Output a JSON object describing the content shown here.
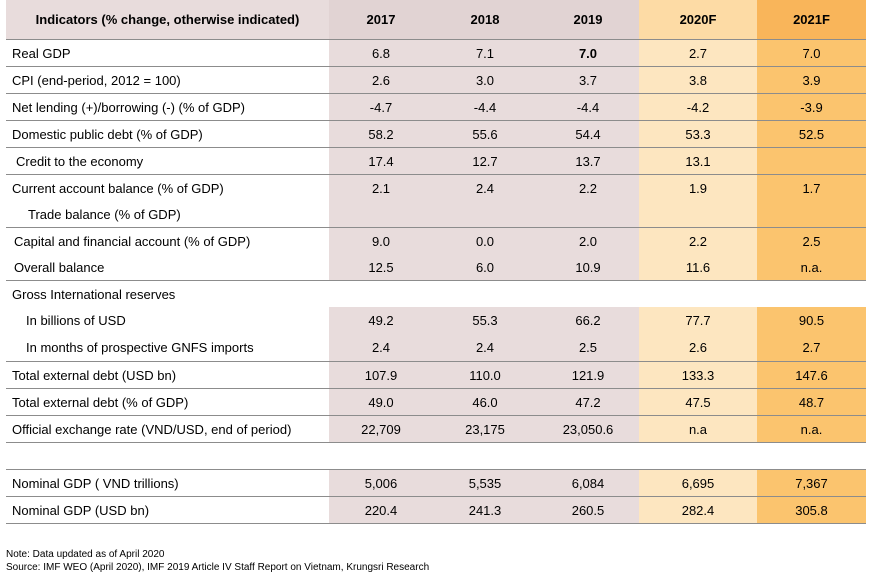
{
  "table": {
    "header": [
      "Indicators (% change, otherwise indicated)",
      "2017",
      "2018",
      "2019",
      "2020F",
      "2021F"
    ],
    "rows": [
      {
        "label": "Real GDP",
        "values": [
          "6.8",
          "7.1",
          "7.0",
          "2.7",
          "7.0"
        ]
      },
      {
        "label": "CPI (end-period, 2012 = 100)",
        "values": [
          "2.6",
          "3.0",
          "3.7",
          "3.8",
          "3.9"
        ]
      },
      {
        "label": "Net lending (+)/borrowing (-) (% of GDP)",
        "values": [
          "-4.7",
          "-4.4",
          "-4.4",
          "-4.2",
          "-3.9"
        ]
      },
      {
        "label": "Domestic public debt (% of GDP)",
        "values": [
          "58.2",
          "55.6",
          "54.4",
          "53.3",
          "52.5"
        ]
      },
      {
        "label": "Credit to the economy",
        "values": [
          "17.4",
          "12.7",
          "13.7",
          "13.1",
          ""
        ]
      },
      {
        "label": "Current account balance (% of GDP)",
        "values": [
          "2.1",
          "2.4",
          "2.2",
          "1.9",
          "1.7"
        ]
      },
      {
        "label": "Trade balance (% of GDP)",
        "values": [
          "",
          "",
          "",
          "",
          ""
        ]
      },
      {
        "label": "Capital and financial account (% of GDP)",
        "values": [
          "9.0",
          "0.0",
          "2.0",
          "2.2",
          "2.5"
        ]
      },
      {
        "label": "Overall balance",
        "values": [
          "12.5",
          "6.0",
          "10.9",
          "11.6",
          "n.a."
        ]
      },
      {
        "label": "Gross International reserves",
        "values": [
          "",
          "",
          "",
          "",
          ""
        ]
      },
      {
        "label": "In billions of USD",
        "values": [
          "49.2",
          "55.3",
          "66.2",
          "77.7",
          "90.5"
        ]
      },
      {
        "label": "In months of prospective GNFS imports",
        "values": [
          "2.4",
          "2.4",
          "2.5",
          "2.6",
          "2.7"
        ]
      },
      {
        "label": "Total external debt (USD bn)",
        "values": [
          "107.9",
          "110.0",
          "121.9",
          "133.3",
          "147.6"
        ]
      },
      {
        "label": "Total external debt (% of GDP)",
        "values": [
          "49.0",
          "46.0",
          "47.2",
          "47.5",
          "48.7"
        ]
      },
      {
        "label": "Official exchange rate (VND/USD, end of period)",
        "values": [
          "22,709",
          "23,175",
          "23,050.6",
          "n.a",
          "n.a."
        ]
      },
      {
        "label": "",
        "values": [
          "",
          "",
          "",
          "",
          ""
        ]
      },
      {
        "label": "Nominal GDP ( VND trillions)",
        "values": [
          "5,006",
          "5,535",
          "6,084",
          "6,695",
          "7,367"
        ]
      },
      {
        "label": "Nominal GDP (USD bn)",
        "values": [
          "220.4",
          "241.3",
          "260.5",
          "282.4",
          "305.8"
        ]
      }
    ]
  },
  "notes": {
    "note": "Note: Data updated as of April 2020",
    "source": "Source: IMF WEO (April 2020),  IMF 2019 Article IV Staff Report on Vietnam, Krungsri Research"
  }
}
